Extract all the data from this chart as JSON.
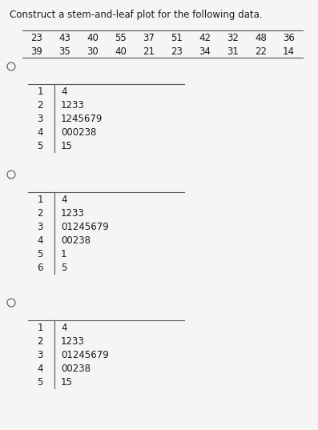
{
  "title": "Construct a stem-and-leaf plot for the following data.",
  "data_row1": [
    "23",
    "43",
    "40",
    "55",
    "37",
    "51",
    "42",
    "32",
    "48",
    "36"
  ],
  "data_row2": [
    "39",
    "35",
    "30",
    "40",
    "21",
    "23",
    "34",
    "31",
    "22",
    "14"
  ],
  "options": [
    {
      "stems": [
        "1",
        "2",
        "3",
        "4",
        "5"
      ],
      "leaves": [
        "4",
        "1233",
        "1245679",
        "000238",
        "15"
      ]
    },
    {
      "stems": [
        "1",
        "2",
        "3",
        "4",
        "5",
        "6"
      ],
      "leaves": [
        "4",
        "1233",
        "01245679",
        "00238",
        "1",
        "5"
      ]
    },
    {
      "stems": [
        "1",
        "2",
        "3",
        "4",
        "5"
      ],
      "leaves": [
        "4",
        "1233",
        "01245679",
        "00238",
        "15"
      ]
    }
  ],
  "bg_color": "#f5f5f5",
  "text_color": "#1a1a1a",
  "title_fontsize": 8.5,
  "table_fontsize": 8.5,
  "stem_leaf_fontsize": 8.5,
  "line_color": "#555555"
}
